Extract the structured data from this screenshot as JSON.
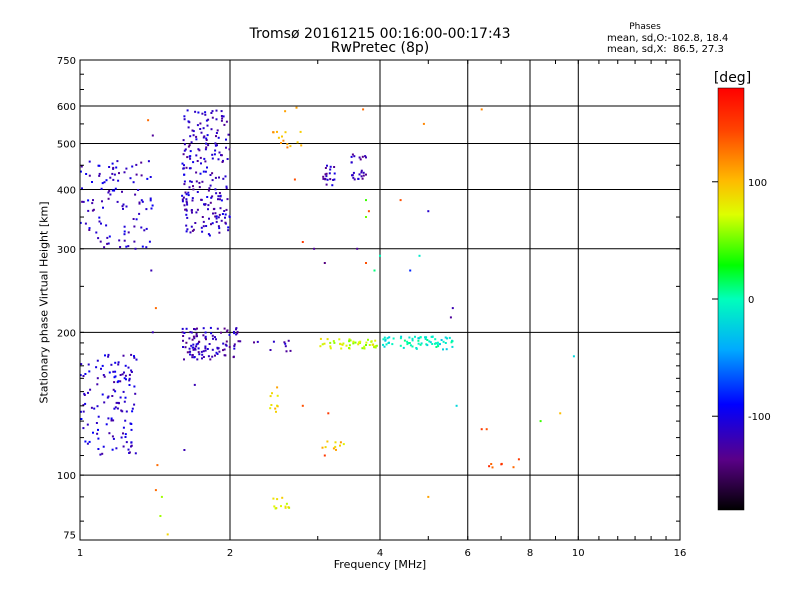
{
  "chart_data": {
    "type": "scatter",
    "title": "Tromsø 20161215 00:16:00-00:17:43",
    "subtitle": "RwPretec (8p)",
    "xlabel": "Frequency [MHz]",
    "ylabel": "Stationary phase Virtual Height [km]",
    "x_scale": "log",
    "y_scale": "log",
    "xlim": [
      1,
      16
    ],
    "ylim": [
      73,
      750
    ],
    "x_ticks": [
      "1",
      "2",
      "4",
      "6",
      "8",
      "10",
      "16"
    ],
    "y_ticks": [
      "75",
      "100",
      "200",
      "300",
      "400",
      "500",
      "600",
      "750"
    ],
    "grid": true,
    "phases": {
      "header": "Phases",
      "o_line": "mean, sd,O:-102.8, 18.4",
      "x_line": "mean, sd,X:  86.5, 27.3"
    },
    "colorbar": {
      "label": "[deg]",
      "ticks": [
        "100",
        "0",
        "-100"
      ],
      "range": [
        -180,
        180
      ]
    },
    "clusters": [
      {
        "x_range": [
          1.0,
          1.3
        ],
        "y_range": [
          110,
          180
        ],
        "phase": -110,
        "count": 130
      },
      {
        "x_range": [
          1.0,
          1.4
        ],
        "y_range": [
          300,
          460
        ],
        "phase": -112,
        "count": 110
      },
      {
        "x_range": [
          1.6,
          2.0
        ],
        "y_range": [
          320,
          590
        ],
        "phase": -115,
        "count": 220
      },
      {
        "x_range": [
          1.6,
          2.1
        ],
        "y_range": [
          175,
          205
        ],
        "phase": -120,
        "count": 110
      },
      {
        "x_range": [
          2.1,
          2.9
        ],
        "y_range": [
          182,
          192
        ],
        "phase": -115,
        "count": 10
      },
      {
        "x_range": [
          3.0,
          4.0
        ],
        "y_range": [
          184,
          194
        ],
        "phase": 70,
        "count": 50
      },
      {
        "x_range": [
          4.0,
          5.6
        ],
        "y_range": [
          184,
          196
        ],
        "phase": -10,
        "count": 70
      },
      {
        "x_range": [
          3.05,
          3.25
        ],
        "y_range": [
          405,
          450
        ],
        "phase": -120,
        "count": 20
      },
      {
        "x_range": [
          3.5,
          3.75
        ],
        "y_range": [
          420,
          475
        ],
        "phase": -120,
        "count": 25
      },
      {
        "x_range": [
          2.4,
          2.8
        ],
        "y_range": [
          490,
          530
        ],
        "phase": 105,
        "count": 14
      },
      {
        "x_range": [
          2.4,
          2.65
        ],
        "y_range": [
          85,
          91
        ],
        "phase": 80,
        "count": 12
      },
      {
        "x_range": [
          2.4,
          2.5
        ],
        "y_range": [
          135,
          155
        ],
        "phase": 90,
        "count": 10
      },
      {
        "x_range": [
          3.0,
          3.4
        ],
        "y_range": [
          112,
          118
        ],
        "phase": 95,
        "count": 10
      },
      {
        "x_range": [
          6.6,
          7.6
        ],
        "y_range": [
          100,
          106
        ],
        "phase": 140,
        "count": 6
      }
    ],
    "points": [
      {
        "x": 1.37,
        "y": 560,
        "phase": 130
      },
      {
        "x": 1.4,
        "y": 520,
        "phase": -130
      },
      {
        "x": 1.39,
        "y": 270,
        "phase": -120
      },
      {
        "x": 1.42,
        "y": 225,
        "phase": 130
      },
      {
        "x": 1.4,
        "y": 200,
        "phase": -120
      },
      {
        "x": 1.43,
        "y": 105,
        "phase": 130
      },
      {
        "x": 1.42,
        "y": 93,
        "phase": 130
      },
      {
        "x": 1.46,
        "y": 90,
        "phase": 60
      },
      {
        "x": 1.45,
        "y": 82,
        "phase": 60
      },
      {
        "x": 1.5,
        "y": 75,
        "phase": 90
      },
      {
        "x": 1.62,
        "y": 113,
        "phase": -120
      },
      {
        "x": 1.7,
        "y": 155,
        "phase": -120
      },
      {
        "x": 2.58,
        "y": 585,
        "phase": 110
      },
      {
        "x": 2.72,
        "y": 595,
        "phase": 110
      },
      {
        "x": 2.7,
        "y": 420,
        "phase": 140
      },
      {
        "x": 2.8,
        "y": 310,
        "phase": 150
      },
      {
        "x": 2.95,
        "y": 300,
        "phase": -130
      },
      {
        "x": 3.1,
        "y": 280,
        "phase": -140
      },
      {
        "x": 2.8,
        "y": 140,
        "phase": 140
      },
      {
        "x": 3.15,
        "y": 135,
        "phase": 150
      },
      {
        "x": 3.1,
        "y": 110,
        "phase": 150
      },
      {
        "x": 3.6,
        "y": 300,
        "phase": -130
      },
      {
        "x": 3.8,
        "y": 360,
        "phase": 140
      },
      {
        "x": 3.75,
        "y": 380,
        "phase": 40
      },
      {
        "x": 3.75,
        "y": 350,
        "phase": 50
      },
      {
        "x": 3.75,
        "y": 280,
        "phase": 140
      },
      {
        "x": 3.7,
        "y": 590,
        "phase": 130
      },
      {
        "x": 3.9,
        "y": 270,
        "phase": 10
      },
      {
        "x": 4.0,
        "y": 290,
        "phase": 0
      },
      {
        "x": 4.4,
        "y": 380,
        "phase": 140
      },
      {
        "x": 4.8,
        "y": 290,
        "phase": -10
      },
      {
        "x": 4.6,
        "y": 270,
        "phase": -80
      },
      {
        "x": 5.0,
        "y": 360,
        "phase": -110
      },
      {
        "x": 4.9,
        "y": 550,
        "phase": 120
      },
      {
        "x": 5.0,
        "y": 90,
        "phase": 110
      },
      {
        "x": 5.6,
        "y": 225,
        "phase": -120
      },
      {
        "x": 5.7,
        "y": 140,
        "phase": -20
      },
      {
        "x": 5.55,
        "y": 215,
        "phase": -130
      },
      {
        "x": 6.4,
        "y": 590,
        "phase": 120
      },
      {
        "x": 6.4,
        "y": 125,
        "phase": 150
      },
      {
        "x": 6.55,
        "y": 125,
        "phase": 140
      },
      {
        "x": 7.6,
        "y": 108,
        "phase": 150
      },
      {
        "x": 8.4,
        "y": 130,
        "phase": 40
      },
      {
        "x": 9.2,
        "y": 135,
        "phase": 100
      },
      {
        "x": 9.8,
        "y": 178,
        "phase": -20
      }
    ]
  }
}
